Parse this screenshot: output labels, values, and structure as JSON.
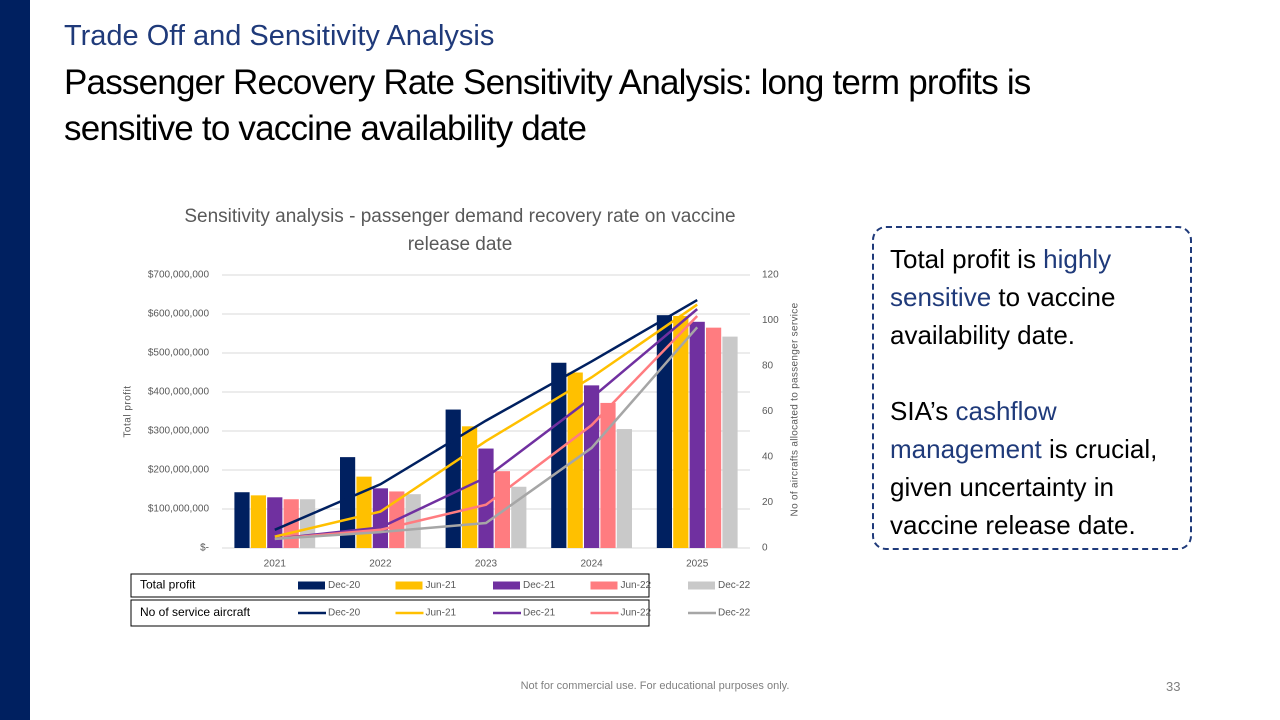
{
  "slide_subtitle": "Trade Off and Sensitivity Analysis",
  "slide_title": "Passenger Recovery Rate Sensitivity Analysis: long term profits is sensitive to vaccine availability date",
  "chart_data": {
    "type": "bar-line",
    "title": "Sensitivity analysis - passenger demand recovery rate on vaccine release date",
    "y_label": "Total profit",
    "y2_label": "No of aircrafts allocated to passenger service",
    "categories": [
      "2021",
      "2022",
      "2023",
      "2024",
      "2025"
    ],
    "ylim": [
      0,
      700000000
    ],
    "yticks": [
      {
        "value": 0,
        "label": "$-"
      },
      {
        "value": 100000000,
        "label": "$100,000,000"
      },
      {
        "value": 200000000,
        "label": "$200,000,000"
      },
      {
        "value": 300000000,
        "label": "$300,000,000"
      },
      {
        "value": 400000000,
        "label": "$400,000,000"
      },
      {
        "value": 500000000,
        "label": "$500,000,000"
      },
      {
        "value": 600000000,
        "label": "$600,000,000"
      },
      {
        "value": 700000000,
        "label": "$700,000,000"
      }
    ],
    "y2lim": [
      0,
      120
    ],
    "y2ticks": [
      0,
      20,
      40,
      60,
      80,
      100,
      120
    ],
    "bar_legend_title": "Total profit",
    "line_legend_title": "No of service aircraft",
    "series": [
      {
        "name": "Dec-20",
        "color": "#002060",
        "values": [
          143000000,
          233000000,
          355000000,
          475000000,
          597000000
        ]
      },
      {
        "name": "Jun-21",
        "color": "#ffc000",
        "values": [
          135000000,
          183000000,
          312000000,
          450000000,
          595000000
        ]
      },
      {
        "name": "Dec-21",
        "color": "#7030a0",
        "values": [
          130000000,
          153000000,
          255000000,
          417000000,
          580000000
        ]
      },
      {
        "name": "Jun-22",
        "color": "#ff7c80",
        "values": [
          125000000,
          145000000,
          197000000,
          372000000,
          565000000
        ]
      },
      {
        "name": "Dec-22",
        "color": "#c9c9c9",
        "values": [
          125000000,
          138000000,
          157000000,
          305000000,
          542000000
        ]
      }
    ],
    "line_series": [
      {
        "name": "Dec-20",
        "color": "#002060",
        "axis": "y2",
        "values": [
          8,
          28,
          56,
          82,
          109
        ]
      },
      {
        "name": "Jun-21",
        "color": "#ffc000",
        "axis": "y2",
        "values": [
          5,
          16,
          47,
          75,
          107
        ]
      },
      {
        "name": "Dec-21",
        "color": "#7030a0",
        "axis": "y2",
        "values": [
          4,
          9,
          31,
          66,
          105
        ]
      },
      {
        "name": "Jun-22",
        "color": "#ff7c80",
        "axis": "y2",
        "values": [
          4,
          8,
          19,
          54,
          102
        ]
      },
      {
        "name": "Dec-22",
        "color": "#a6a6a6",
        "axis": "y2",
        "values": [
          4,
          7,
          11,
          44,
          97
        ]
      }
    ]
  },
  "callout": {
    "paragraphs": [
      [
        {
          "text": "Total profit is "
        },
        {
          "text": "highly sensitive",
          "color": "#1f3a7a"
        },
        {
          "text": " to vaccine availability date."
        }
      ],
      [
        {
          "text": "SIA’s "
        },
        {
          "text": "cashflow management",
          "color": "#1f3a7a"
        },
        {
          "text": " is crucial, given uncertainty in vaccine release date."
        }
      ]
    ]
  },
  "footer": "Not for commercial use. For educational purposes only.",
  "page_number": "33"
}
